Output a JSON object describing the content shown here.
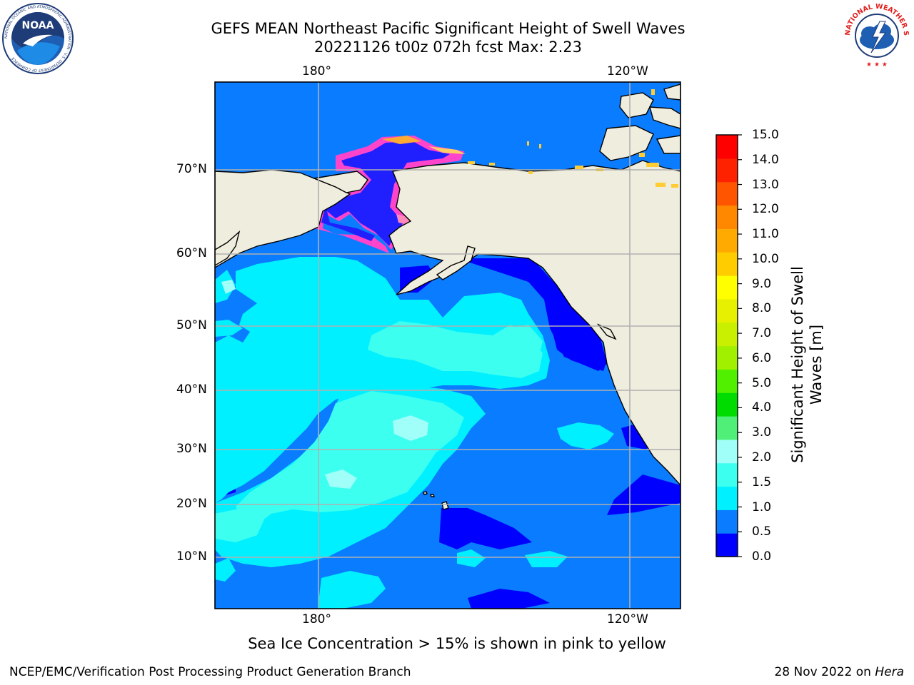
{
  "title": {
    "line1": "GEFS MEAN Northeast Pacific Significant Height of Swell Waves",
    "line2": "20221126 t00z 072h fcst   Max: 2.23"
  },
  "axes": {
    "lon_labels": [
      "180°",
      "120°W"
    ],
    "lat_labels": [
      "70°N",
      "60°N",
      "50°N",
      "40°N",
      "30°N",
      "20°N",
      "10°N"
    ],
    "grid": true
  },
  "colorbar": {
    "title": "Significant Height of Swell Waves [m]",
    "ticks": [
      "0.0",
      "0.5",
      "1.0",
      "1.5",
      "2.0",
      "3.0",
      "4.0",
      "5.0",
      "6.0",
      "7.0",
      "8.0",
      "9.0",
      "10.0",
      "11.0",
      "12.0",
      "13.0",
      "14.0",
      "15.0"
    ],
    "colors": [
      "#0000ff",
      "#0a7cff",
      "#00f0ff",
      "#3cfff0",
      "#a0fff8",
      "#50f078",
      "#00dc00",
      "#50f000",
      "#a0f000",
      "#c8f000",
      "#e6f000",
      "#ffff00",
      "#ffcc00",
      "#ffaa00",
      "#ff8800",
      "#ff5500",
      "#ff2200",
      "#ff0000"
    ]
  },
  "colors": {
    "land": "#efedde",
    "ocean_base": "#0a7cff",
    "swell_low": "#0000ff",
    "swell_mid": "#00f0ff",
    "swell_high": "#3cfff0",
    "ice": "#ff44cc"
  },
  "logos": {
    "noaa": "NOAA",
    "noaa_ring": "NATIONAL OCEANIC AND ATMOSPHERIC ADMINISTRATION · U.S. DEPARTMENT OF COMMERCE",
    "nws": "NATIONAL WEATHER SERVICE"
  },
  "note": "Sea Ice Concentration > 15% is shown in pink to yellow",
  "footer": {
    "left": "NCEP/EMC/Verification Post Processing Product Generation Branch",
    "date": "28 Nov 2022 on ",
    "host": "Hera"
  }
}
